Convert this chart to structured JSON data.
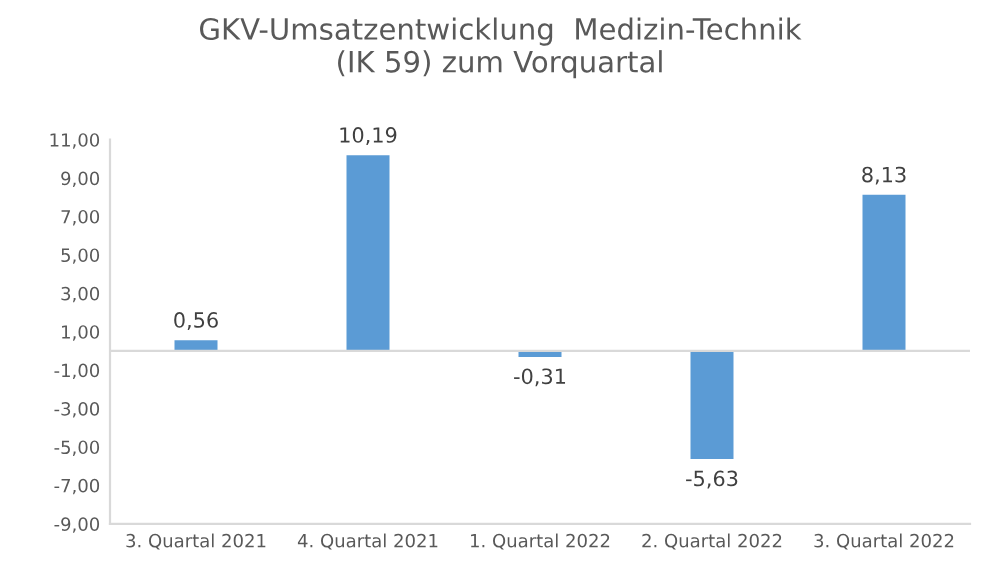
{
  "chart_data": {
    "type": "bar",
    "title": "GKV-Umsatzentwicklung  Medizin-Technik\n(IK 59) zum Vorquartal",
    "categories": [
      "3. Quartal 2021",
      "4. Quartal 2021",
      "1. Quartal 2022",
      "2. Quartal 2022",
      "3. Quartal 2022"
    ],
    "values": [
      0.56,
      10.19,
      -0.31,
      -5.63,
      8.13
    ],
    "value_labels": [
      "0,56",
      "10,19",
      "-0,31",
      "-5,63",
      "8,13"
    ],
    "color": "#5b9bd5",
    "ylim": [
      -9,
      11
    ],
    "yticks": [
      {
        "value": -9,
        "label": "-9,00"
      },
      {
        "value": -7,
        "label": "-7,00"
      },
      {
        "value": -5,
        "label": "-5,00"
      },
      {
        "value": -3,
        "label": "-3,00"
      },
      {
        "value": -1,
        "label": "-1,00"
      },
      {
        "value": 1,
        "label": "1,00"
      },
      {
        "value": 3,
        "label": "3,00"
      },
      {
        "value": 5,
        "label": "5,00"
      },
      {
        "value": 7,
        "label": "7,00"
      },
      {
        "value": 9,
        "label": "9,00"
      },
      {
        "value": 11,
        "label": "11,00"
      }
    ],
    "grid": false
  }
}
